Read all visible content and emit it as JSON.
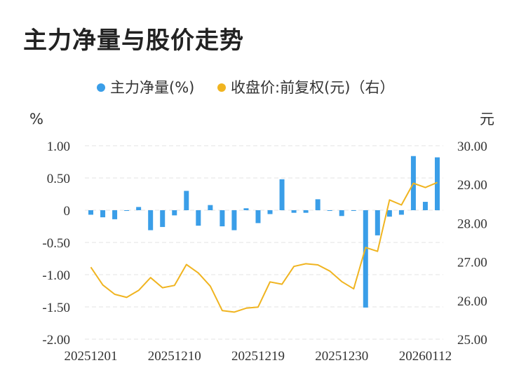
{
  "title": "主力净量与股价走势",
  "chart_data": {
    "type": "bar+line",
    "legend": [
      "主力净量(%)",
      "收盘价:前复权(元)（右）"
    ],
    "left_unit": "%",
    "right_unit": "元",
    "ylim_left": [
      -2.0,
      1.0
    ],
    "ylim_right": [
      25.0,
      30.0
    ],
    "left_ticks": [
      "1.00",
      "0.50",
      "0",
      "-0.50",
      "-1.00",
      "-1.50",
      "-2.00"
    ],
    "right_ticks": [
      "30.00",
      "29.00",
      "28.00",
      "27.00",
      "26.00",
      "25.00"
    ],
    "x_tick_labels": [
      "20251201",
      "20251210",
      "20251219",
      "20251230",
      "20260112"
    ],
    "x_tick_index": [
      0,
      7,
      14,
      21,
      28
    ],
    "colors": {
      "bar": "#3a9ee8",
      "line": "#f0b420",
      "grid": "#e3e3e3"
    },
    "series": [
      {
        "name": "主力净量(%)",
        "type": "bar",
        "values": [
          -0.07,
          -0.11,
          -0.14,
          -0.01,
          0.05,
          -0.31,
          -0.26,
          -0.08,
          0.3,
          -0.24,
          0.08,
          -0.25,
          -0.31,
          0.03,
          -0.2,
          -0.06,
          0.48,
          -0.04,
          -0.04,
          0.17,
          -0.01,
          -0.09,
          -0.01,
          -1.51,
          -0.39,
          -0.1,
          -0.07,
          0.84,
          0.13,
          0.82
        ]
      },
      {
        "name": "收盘价:前复权(元)（右）",
        "type": "line",
        "values": [
          26.86,
          26.4,
          26.16,
          26.08,
          26.26,
          26.59,
          26.33,
          26.39,
          26.93,
          26.71,
          26.37,
          25.74,
          25.7,
          25.8,
          25.83,
          26.48,
          26.42,
          26.88,
          26.95,
          26.92,
          26.76,
          26.49,
          26.3,
          27.37,
          27.27,
          28.6,
          28.47,
          29.03,
          28.92,
          29.05
        ]
      }
    ]
  }
}
